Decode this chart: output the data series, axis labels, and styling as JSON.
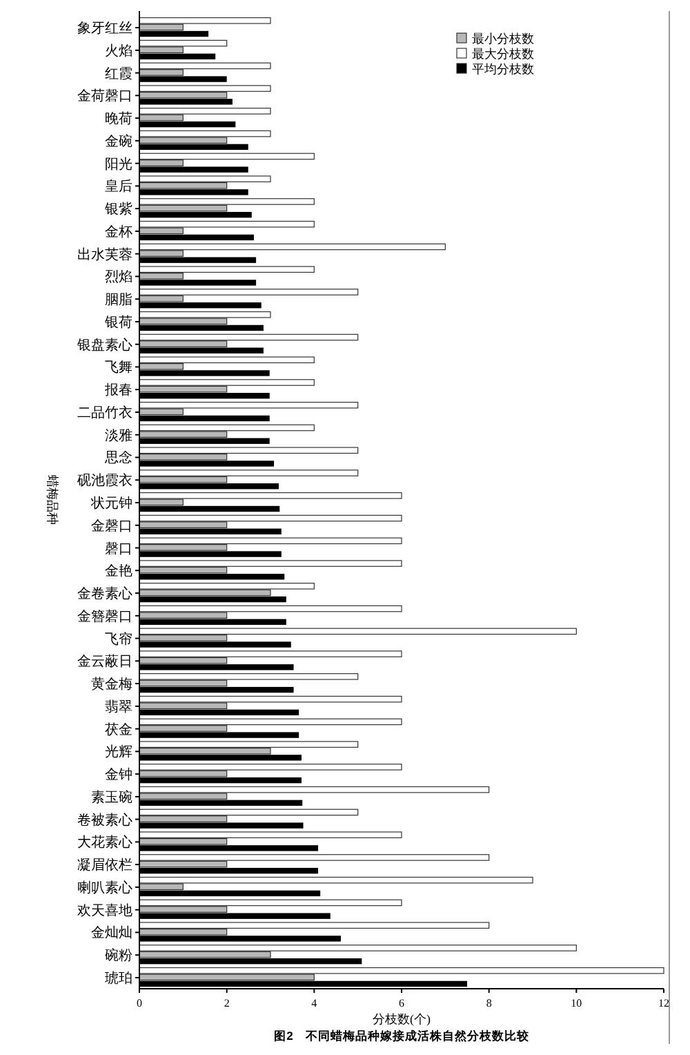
{
  "chart_data": {
    "type": "bar",
    "orientation": "horizontal",
    "title": "图2　不同蜡梅品种嫁接成活株自然分枝数比较",
    "xlabel": "分枝数(个)",
    "ylabel": "蜡梅品种",
    "categories": [
      "象牙红丝",
      "火焰",
      "红霞",
      "金荷磬口",
      "晚荷",
      "金碗",
      "阳光",
      "皇后",
      "银紫",
      "金杯",
      "出水芙蓉",
      "烈焰",
      "胭脂",
      "银荷",
      "银盘素心",
      "飞舞",
      "报春",
      "二品竹衣",
      "淡雅",
      "思念",
      "砚池霞衣",
      "状元钟",
      "金磬口",
      "磬口",
      "金艳",
      "金卷素心",
      "金簪磬口",
      "飞帘",
      "金云蔽日",
      "黄金梅",
      "翡翠",
      "茯金",
      "光辉",
      "金钟",
      "素玉碗",
      "卷被素心",
      "大花素心",
      "凝眉依栏",
      "喇叭素心",
      "欢天喜地",
      "金灿灿",
      "碗粉",
      "琥珀"
    ],
    "series": [
      {
        "name": "最小分枝数",
        "color": "#b8b8b8",
        "values": [
          1,
          1,
          1,
          2,
          1,
          2,
          1,
          2,
          2,
          1,
          1,
          1,
          1,
          2,
          2,
          1,
          2,
          1,
          2,
          2,
          2,
          1,
          2,
          2,
          2,
          3,
          2,
          2,
          2,
          2,
          2,
          2,
          3,
          2,
          2,
          2,
          2,
          2,
          1,
          2,
          2,
          3,
          4
        ]
      },
      {
        "name": "最大分枝数",
        "color": "#ffffff",
        "values": [
          3,
          2,
          3,
          3,
          3,
          3,
          4,
          3,
          4,
          4,
          7,
          4,
          5,
          3,
          5,
          4,
          4,
          5,
          4,
          5,
          5,
          6,
          6,
          6,
          6,
          4,
          6,
          10,
          6,
          5,
          6,
          6,
          5,
          6,
          8,
          5,
          6,
          8,
          9,
          6,
          8,
          10,
          12
        ]
      },
      {
        "name": "平均分枝数",
        "color": "#000000",
        "values": [
          1.58,
          1.74,
          2.0,
          2.13,
          2.2,
          2.49,
          2.49,
          2.49,
          2.57,
          2.62,
          2.67,
          2.67,
          2.79,
          2.84,
          2.84,
          2.98,
          2.98,
          2.98,
          2.98,
          3.08,
          3.19,
          3.21,
          3.25,
          3.25,
          3.32,
          3.36,
          3.36,
          3.47,
          3.53,
          3.53,
          3.65,
          3.65,
          3.71,
          3.71,
          3.73,
          3.75,
          4.09,
          4.09,
          4.14,
          4.37,
          4.61,
          5.09,
          7.5
        ]
      }
    ],
    "xlim": [
      0,
      12
    ],
    "xticks": [
      0,
      2,
      4,
      6,
      8,
      10,
      12
    ],
    "legend": "top right",
    "grid": false
  }
}
